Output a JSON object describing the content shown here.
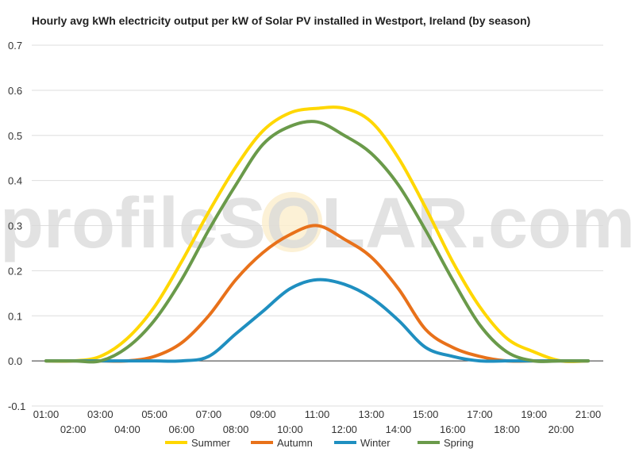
{
  "chart_data": {
    "type": "line",
    "title": "Hourly avg kWh electricity output per kW of Solar PV installed in Westport, Ireland (by season)",
    "xlabel": "",
    "ylabel": "",
    "ylim": [
      -0.1,
      0.7
    ],
    "yticks": [
      "-0.1",
      "0.0",
      "0.1",
      "0.2",
      "0.3",
      "0.4",
      "0.5",
      "0.6",
      "0.7"
    ],
    "grid": true,
    "legend_position": "bottom",
    "watermark": "profileSOLAR.com",
    "categories": [
      "01:00",
      "02:00",
      "03:00",
      "04:00",
      "05:00",
      "06:00",
      "07:00",
      "08:00",
      "09:00",
      "10:00",
      "11:00",
      "12:00",
      "13:00",
      "14:00",
      "15:00",
      "16:00",
      "17:00",
      "18:00",
      "19:00",
      "20:00",
      "21:00"
    ],
    "series": [
      {
        "name": "Summer",
        "color": "#FFD700",
        "values": [
          0.0,
          0.0,
          0.01,
          0.05,
          0.12,
          0.22,
          0.33,
          0.43,
          0.51,
          0.55,
          0.56,
          0.56,
          0.53,
          0.45,
          0.34,
          0.22,
          0.12,
          0.05,
          0.02,
          0.0,
          0.0
        ]
      },
      {
        "name": "Autumn",
        "color": "#E8711A",
        "values": [
          0.0,
          0.0,
          0.0,
          0.0,
          0.01,
          0.04,
          0.1,
          0.18,
          0.24,
          0.28,
          0.3,
          0.27,
          0.23,
          0.16,
          0.07,
          0.03,
          0.01,
          0.0,
          0.0,
          0.0,
          0.0
        ]
      },
      {
        "name": "Winter",
        "color": "#1F8FC0",
        "values": [
          0.0,
          0.0,
          0.0,
          0.0,
          0.0,
          0.0,
          0.01,
          0.06,
          0.11,
          0.16,
          0.18,
          0.17,
          0.14,
          0.09,
          0.03,
          0.01,
          0.0,
          0.0,
          0.0,
          0.0,
          0.0
        ]
      },
      {
        "name": "Spring",
        "color": "#6A9A4A",
        "values": [
          0.0,
          0.0,
          0.0,
          0.03,
          0.09,
          0.18,
          0.29,
          0.39,
          0.48,
          0.52,
          0.53,
          0.5,
          0.46,
          0.39,
          0.29,
          0.18,
          0.08,
          0.02,
          0.0,
          0.0,
          0.0
        ]
      }
    ]
  }
}
